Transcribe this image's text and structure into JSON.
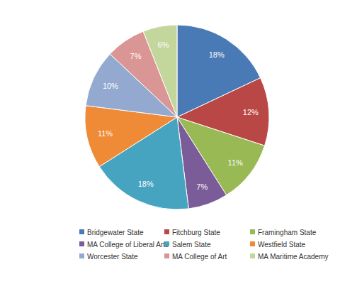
{
  "chart_data": {
    "type": "pie",
    "categories": [
      "Bridgewater State",
      "Fitchburg State",
      "Framingham State",
      "MA College of Liberal Arts",
      "Salem State",
      "Westfield State",
      "Worcester State",
      "MA College of Art",
      "MA Maritime Academy"
    ],
    "values": [
      18,
      12,
      11,
      7,
      18,
      11,
      10,
      7,
      6
    ],
    "value_labels": [
      "18%",
      "12%",
      "11%",
      "7%",
      "18%",
      "11%",
      "10%",
      "7%",
      "6%"
    ],
    "colors": [
      "#4a7ab5",
      "#b94745",
      "#98b954",
      "#7a5c99",
      "#46a4c0",
      "#ef8a36",
      "#93a9d0",
      "#d99694",
      "#c3d69b"
    ],
    "data_labels": true,
    "legend": "bottom"
  }
}
